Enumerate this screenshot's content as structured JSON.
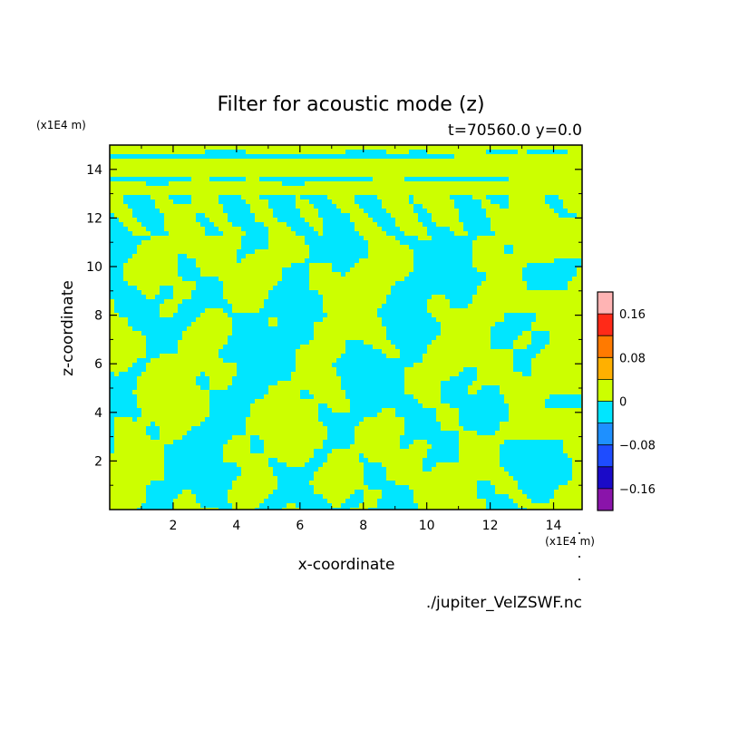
{
  "chart_data": {
    "type": "heatmap",
    "title": "Filter for acoustic mode (z)",
    "subtitle": "t=70560.0 y=0.0",
    "xlabel": "x-coordinate",
    "ylabel": "z-coordinate",
    "x_unit": "(x1E4 m)",
    "y_unit": "(x1E4 m)",
    "source": "./jupiter_VelZSWF.nc",
    "xlim": [
      0.0,
      14.9
    ],
    "ylim": [
      0.0,
      15.0
    ],
    "xticks": [
      "2",
      "4",
      "6",
      "8",
      "10",
      "12",
      "14"
    ],
    "yticks": [
      "2",
      "4",
      "6",
      "8",
      "10",
      "12",
      "14"
    ],
    "colorbar": {
      "levels": [
        -0.2,
        -0.16,
        -0.12,
        -0.08,
        -0.04,
        0,
        0.04,
        0.08,
        0.12,
        0.16,
        0.2
      ],
      "colors": [
        "#8a14aa",
        "#1a0ac8",
        "#1e4cff",
        "#1e90ff",
        "#00e6ff",
        "#ccff00",
        "#ffb000",
        "#ff7a00",
        "#ff2a18",
        "#ffb4b4"
      ],
      "tick_labels": [
        "-0.16",
        "-0.08",
        "0",
        "0.08",
        "0.16"
      ]
    },
    "field_note": "",
    "contour_levels_visible": [
      -0.04,
      0
    ],
    "field_pattern": {
      "negative_color": "#00e6ff",
      "positive_color": "#ccff00"
    }
  }
}
